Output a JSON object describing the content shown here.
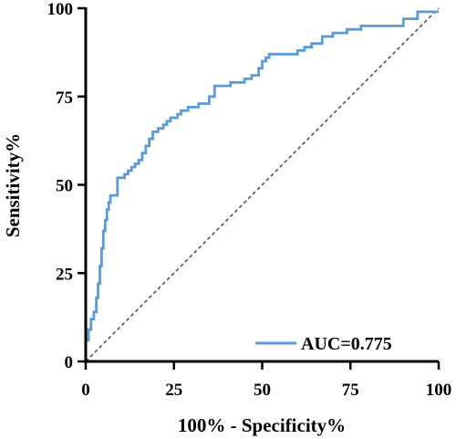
{
  "chart_data": {
    "type": "line",
    "xlabel": "100% - Specificity%",
    "ylabel": "Sensitivity%",
    "xlim": [
      0,
      100
    ],
    "ylim": [
      0,
      100
    ],
    "xticks": [
      "0",
      "25",
      "50",
      "75",
      "100"
    ],
    "yticks": [
      "0",
      "25",
      "50",
      "75",
      "100"
    ],
    "grid": false,
    "legend_position": "bottom-right",
    "series": [
      {
        "name": "AUC=0.775",
        "color": "#5b9bd5",
        "x": [
          0,
          0,
          0.8,
          0.8,
          1.5,
          1.5,
          2.3,
          2.3,
          3,
          3,
          3.5,
          3.5,
          4,
          4,
          4.5,
          4.5,
          5,
          5,
          5.5,
          5.5,
          6,
          6,
          6.5,
          6.5,
          7,
          7,
          9,
          9,
          11,
          11,
          12,
          12,
          13,
          13,
          14,
          14,
          15,
          15,
          16,
          16,
          17,
          17,
          18,
          18,
          19,
          19,
          20.5,
          20.5,
          22,
          22,
          23,
          23,
          24,
          24,
          26,
          26,
          27,
          27,
          29,
          29,
          32,
          32,
          35,
          35,
          36.5,
          36.5,
          41,
          41,
          45,
          45,
          47,
          47,
          49,
          49,
          50,
          50,
          51,
          51,
          52,
          52,
          60,
          60,
          62,
          62,
          64,
          64,
          67,
          67,
          70,
          70,
          74,
          74,
          78,
          78,
          90,
          90,
          94,
          94,
          100
        ],
        "y": [
          0,
          6,
          6,
          9,
          9,
          12,
          12,
          14,
          14,
          18,
          18,
          22,
          22,
          27,
          27,
          32,
          32,
          37,
          37,
          40,
          40,
          43,
          43,
          45,
          45,
          47,
          47,
          52,
          52,
          53,
          53,
          54,
          54,
          55,
          55,
          56,
          56,
          57,
          57,
          59,
          59,
          61,
          61,
          63,
          63,
          65,
          65,
          66,
          66,
          67,
          67,
          68,
          68,
          69,
          69,
          70,
          70,
          71,
          71,
          72,
          72,
          73,
          73,
          75,
          75,
          78,
          78,
          79,
          79,
          80,
          80,
          81,
          81,
          83,
          83,
          85,
          85,
          86,
          86,
          87,
          87,
          88,
          88,
          89,
          89,
          90,
          90,
          92,
          92,
          93,
          93,
          94,
          94,
          95,
          95,
          97,
          97,
          99,
          99
        ]
      }
    ],
    "reference_line": {
      "from": [
        0,
        0
      ],
      "to": [
        100,
        100
      ],
      "style": "dashed",
      "color": "#555555"
    }
  }
}
